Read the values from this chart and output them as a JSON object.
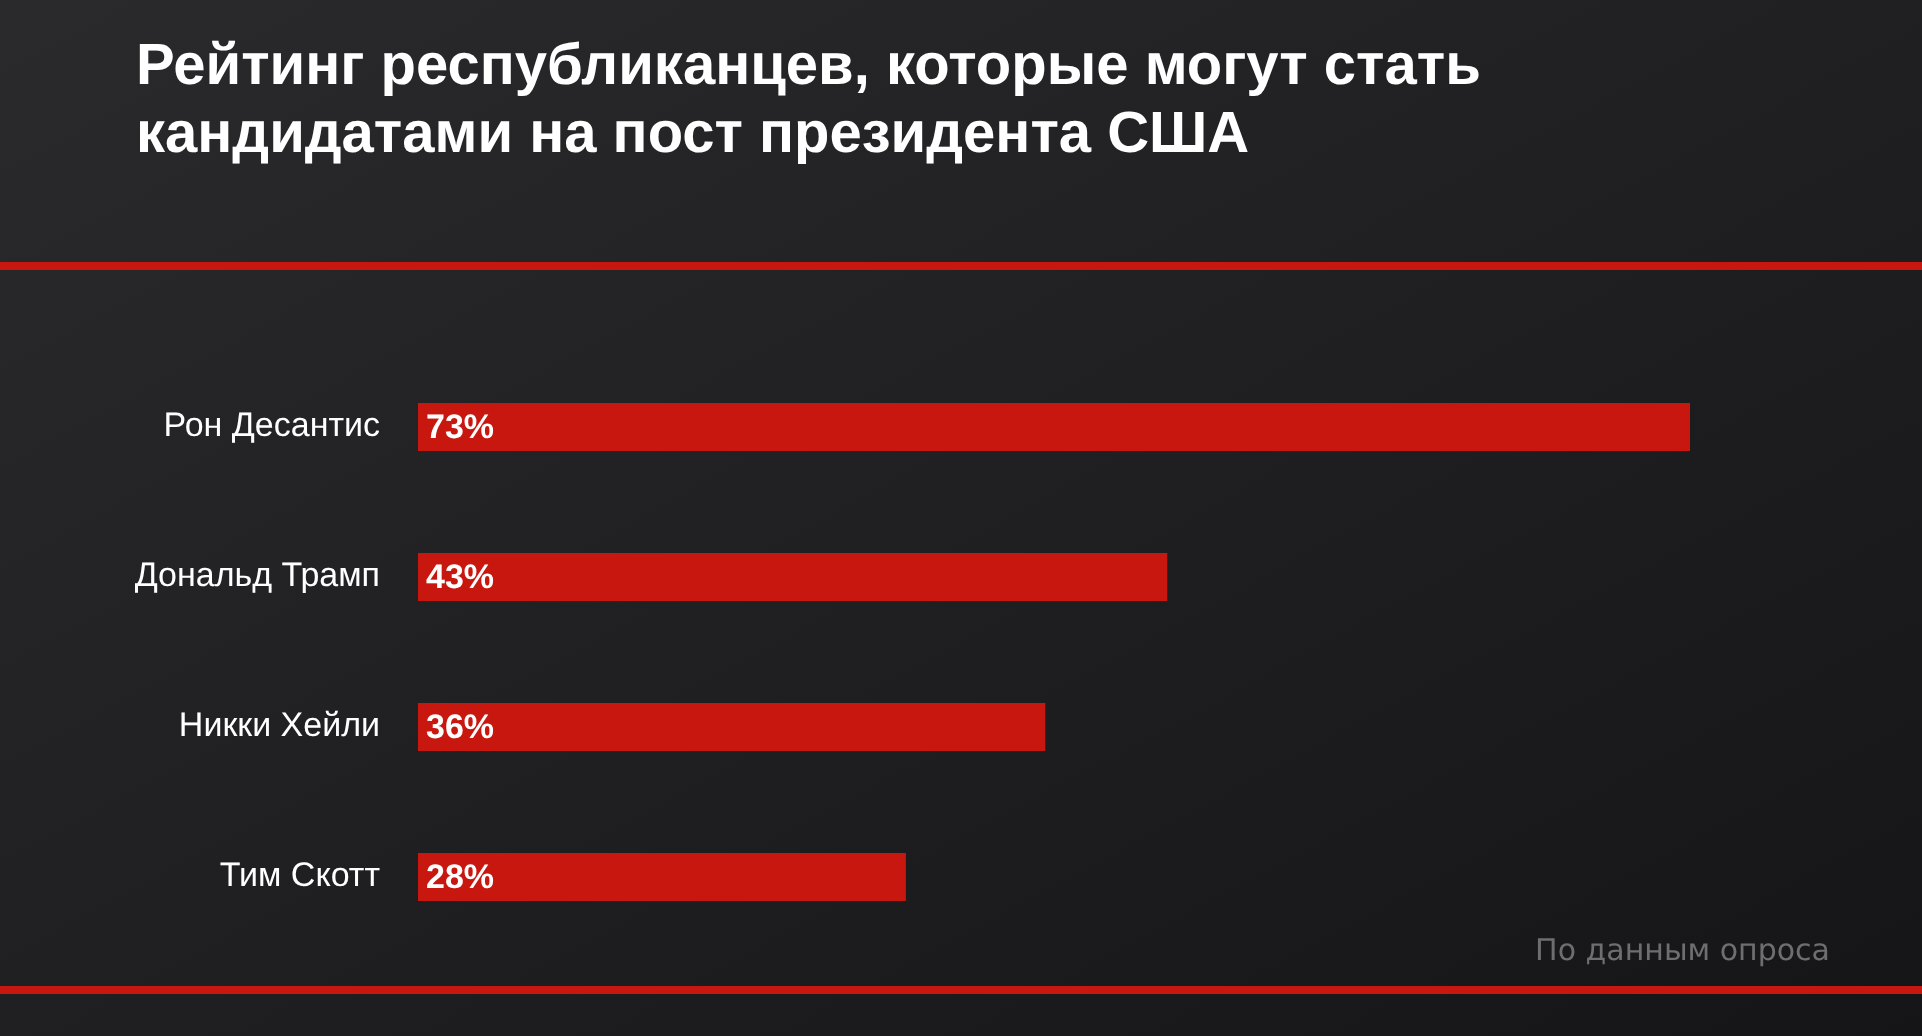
{
  "chart_data": {
    "type": "bar",
    "orientation": "horizontal",
    "title": "Рейтинг республиканцев, которые могут стать кандидатами на пост президента США",
    "categories": [
      "Рон Десантис",
      "Дональд Трамп",
      "Никки Хейли",
      "Тим Скотт"
    ],
    "values": [
      73,
      43,
      36,
      28
    ],
    "color": "#c8170f",
    "data_labels": true,
    "value_labels": [
      "73%",
      "43%",
      "36%",
      "28%"
    ],
    "annotations": [
      "По данным опроса"
    ]
  }
}
